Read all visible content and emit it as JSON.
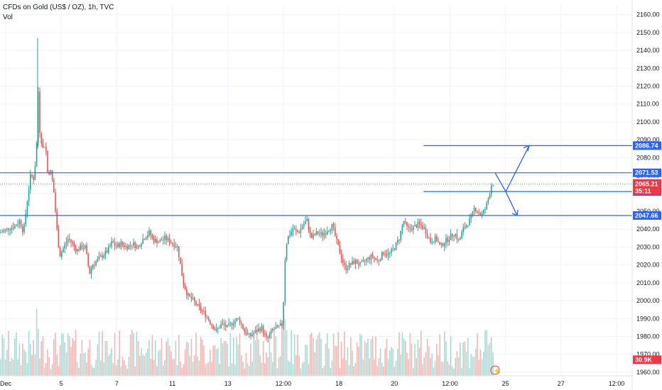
{
  "legend": {
    "title": "CFDs on Gold (US$ / OZ), 1h, TVC",
    "volume_label": "Vol"
  },
  "colors": {
    "up": "#26a69a",
    "down": "#ef5350",
    "level_line": "#2962ff",
    "current_price": "#f23645",
    "volume_up": "#a7dcd6",
    "volume_down": "#f7b6b4"
  },
  "chart_data": {
    "type": "candlestick",
    "symbol": "CFDs on Gold (US$ / OZ)",
    "interval": "1h",
    "source": "TVC",
    "ylim": [
      1958,
      2165
    ],
    "y_ticks": [
      1960,
      1970,
      1980,
      1990,
      2000,
      2010,
      2020,
      2030,
      2040,
      2050,
      2060,
      2070,
      2080,
      2090,
      2100,
      2110,
      2120,
      2130,
      2140,
      2150,
      2160
    ],
    "x_ticks": [
      "Dec",
      "5",
      "7",
      "11",
      "13",
      "12:00",
      "18",
      "20",
      "12:00",
      "25",
      "27",
      "12:00"
    ],
    "approx_path": [
      [
        0,
        2038
      ],
      [
        10,
        2040
      ],
      [
        22,
        2042
      ],
      [
        28,
        2045
      ],
      [
        33,
        2038
      ],
      [
        38,
        2055
      ],
      [
        43,
        2070
      ],
      [
        48,
        2068
      ],
      [
        52,
        2090
      ],
      [
        54,
        2120
      ],
      [
        56,
        2095
      ],
      [
        60,
        2085
      ],
      [
        64,
        2088
      ],
      [
        67,
        2072
      ],
      [
        72,
        2072
      ],
      [
        76,
        2060
      ],
      [
        80,
        2040
      ],
      [
        84,
        2025
      ],
      [
        90,
        2030
      ],
      [
        96,
        2035
      ],
      [
        102,
        2032
      ],
      [
        108,
        2028
      ],
      [
        114,
        2030
      ],
      [
        120,
        2030
      ],
      [
        126,
        2015
      ],
      [
        130,
        2020
      ],
      [
        138,
        2023
      ],
      [
        146,
        2026
      ],
      [
        152,
        2028
      ],
      [
        158,
        2033
      ],
      [
        163,
        2030
      ],
      [
        170,
        2032
      ],
      [
        178,
        2030
      ],
      [
        186,
        2032
      ],
      [
        194,
        2030
      ],
      [
        202,
        2035
      ],
      [
        210,
        2038
      ],
      [
        216,
        2034
      ],
      [
        224,
        2033
      ],
      [
        232,
        2035
      ],
      [
        240,
        2033
      ],
      [
        250,
        2030
      ],
      [
        254,
        2020
      ],
      [
        258,
        2010
      ],
      [
        264,
        2003
      ],
      [
        272,
        2000
      ],
      [
        280,
        1996
      ],
      [
        288,
        1993
      ],
      [
        296,
        1988
      ],
      [
        304,
        1983
      ],
      [
        312,
        1987
      ],
      [
        320,
        1985
      ],
      [
        328,
        1988
      ],
      [
        336,
        1990
      ],
      [
        344,
        1983
      ],
      [
        352,
        1980
      ],
      [
        360,
        1983
      ],
      [
        368,
        1985
      ],
      [
        376,
        1978
      ],
      [
        384,
        1984
      ],
      [
        392,
        1985
      ],
      [
        398,
        1987
      ],
      [
        402,
        2030
      ],
      [
        406,
        2036
      ],
      [
        412,
        2040
      ],
      [
        420,
        2038
      ],
      [
        426,
        2042
      ],
      [
        432,
        2045
      ],
      [
        438,
        2035
      ],
      [
        446,
        2038
      ],
      [
        454,
        2037
      ],
      [
        462,
        2040
      ],
      [
        468,
        2042
      ],
      [
        474,
        2033
      ],
      [
        480,
        2025
      ],
      [
        486,
        2018
      ],
      [
        492,
        2020
      ],
      [
        500,
        2022
      ],
      [
        508,
        2020
      ],
      [
        516,
        2023
      ],
      [
        524,
        2025
      ],
      [
        532,
        2022
      ],
      [
        540,
        2027
      ],
      [
        548,
        2026
      ],
      [
        556,
        2030
      ],
      [
        562,
        2035
      ],
      [
        568,
        2045
      ],
      [
        574,
        2040
      ],
      [
        582,
        2041
      ],
      [
        590,
        2043
      ],
      [
        598,
        2040
      ],
      [
        606,
        2033
      ],
      [
        614,
        2035
      ],
      [
        620,
        2030
      ],
      [
        626,
        2033
      ],
      [
        632,
        2035
      ],
      [
        640,
        2038
      ],
      [
        646,
        2033
      ],
      [
        652,
        2040
      ],
      [
        658,
        2043
      ],
      [
        664,
        2047
      ],
      [
        668,
        2052
      ],
      [
        672,
        2050
      ],
      [
        678,
        2048
      ],
      [
        684,
        2052
      ],
      [
        688,
        2058
      ],
      [
        692,
        2065
      ],
      [
        695,
        2066
      ]
    ],
    "horizontal_levels": [
      {
        "price": 2086.74,
        "label": "2086.74",
        "x_start_fraction": 0.67
      },
      {
        "price": 2071.53,
        "label": "2071.53",
        "x_start_fraction": 0.0
      },
      {
        "price": 2061.04,
        "label": "2061.04",
        "x_start_fraction": 0.67
      },
      {
        "price": 2047.66,
        "label": "2047.66",
        "x_start_fraction": 0.0
      }
    ],
    "current_price": {
      "price": 2065.21,
      "label": "2065.21",
      "countdown": "35:11"
    },
    "volume_label": "30.9K",
    "projection_arrows": [
      {
        "from_price": 2071.53,
        "to_price": 2061.04
      },
      {
        "from_price": 2061.04,
        "to_price": 2086.74
      },
      {
        "from_price": 2061.04,
        "to_price": 2047.66
      }
    ]
  }
}
